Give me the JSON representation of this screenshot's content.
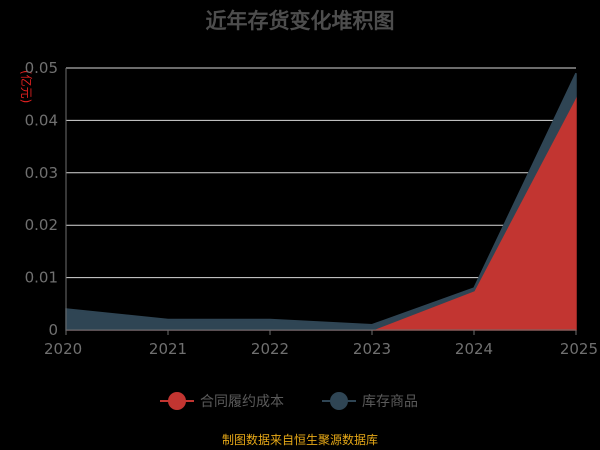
{
  "chart_data": {
    "type": "area",
    "stacked": true,
    "title": "近年存货变化堆积图",
    "unit_label": "(亿元)",
    "categories": [
      "2020",
      "2021",
      "2022",
      "2023",
      "2024",
      "2025"
    ],
    "ylim": [
      0,
      0.05
    ],
    "yticks": [
      "0",
      "0.01",
      "0.02",
      "0.03",
      "0.04",
      "0.05"
    ],
    "grid": true,
    "legend_position": "bottom",
    "series": [
      {
        "name": "合同履约成本",
        "color": "#c23531",
        "values": [
          0,
          0,
          0,
          0,
          0.0075,
          0.0445
        ]
      },
      {
        "name": "库存商品",
        "color": "#2f4554",
        "values": [
          0.004,
          0.002,
          0.002,
          0.001,
          0.0005,
          0.0045
        ]
      }
    ],
    "footer": "制图数据来自恒生聚源数据库"
  }
}
